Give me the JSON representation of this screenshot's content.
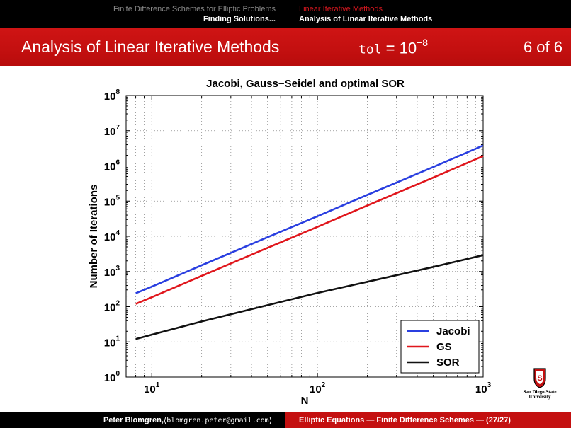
{
  "header": {
    "left_line1": "Finite Difference Schemes for Elliptic Problems",
    "left_line2": "Finding Solutions...",
    "right_line1": "Linear Iterative Methods",
    "right_line2": "Analysis of Linear Iterative Methods"
  },
  "slide": {
    "title": "Analysis of Linear Iterative Methods",
    "tol_label": "tol",
    "tol_eq": " = 10",
    "tol_exp": "−8",
    "page": "6 of 6"
  },
  "footer": {
    "author": "Peter Blomgren,",
    "email_open": " ⟨",
    "email": "blomgren.peter@gmail.com",
    "email_close": "⟩",
    "course": "Elliptic Equations — Finite Difference Schemes — (27/27)"
  },
  "logo": {
    "line1": "San Diego State",
    "line2": "University"
  },
  "colors": {
    "jacobi": "#2a3fe0",
    "gs": "#e0161c",
    "sor": "#111111",
    "bar_red": "#c41010"
  },
  "chart_data": {
    "type": "line",
    "title": "Jacobi, Gauss−Seidel and optimal SOR",
    "xlabel": "N",
    "ylabel": "Number of Iterations",
    "xscale": "log",
    "yscale": "log",
    "xlim": [
      7,
      1000
    ],
    "ylim": [
      1,
      100000000
    ],
    "grid": true,
    "legend_position": "bottom-right",
    "x_ticks": [
      {
        "value": 10,
        "base": "10",
        "exp": "1"
      },
      {
        "value": 100,
        "base": "10",
        "exp": "2"
      },
      {
        "value": 1000,
        "base": "10",
        "exp": "3"
      }
    ],
    "y_ticks": [
      {
        "value": 1,
        "base": "10",
        "exp": "0"
      },
      {
        "value": 10,
        "base": "10",
        "exp": "1"
      },
      {
        "value": 100,
        "base": "10",
        "exp": "2"
      },
      {
        "value": 1000,
        "base": "10",
        "exp": "3"
      },
      {
        "value": 10000,
        "base": "10",
        "exp": "4"
      },
      {
        "value": 100000,
        "base": "10",
        "exp": "5"
      },
      {
        "value": 1000000,
        "base": "10",
        "exp": "6"
      },
      {
        "value": 10000000,
        "base": "10",
        "exp": "7"
      },
      {
        "value": 100000000,
        "base": "10",
        "exp": "8"
      }
    ],
    "series": [
      {
        "name": "Jacobi",
        "x": [
          8,
          10,
          20,
          50,
          100,
          200,
          500,
          1000
        ],
        "values": [
          240,
          370,
          1500,
          9400,
          37000,
          150000,
          930000,
          3800000
        ]
      },
      {
        "name": "GS",
        "x": [
          8,
          10,
          20,
          50,
          100,
          200,
          500,
          1000
        ],
        "values": [
          120,
          185,
          750,
          4700,
          18500,
          75000,
          465000,
          1900000
        ]
      },
      {
        "name": "SOR",
        "x": [
          8,
          10,
          20,
          50,
          100,
          200,
          500,
          1000
        ],
        "values": [
          12,
          16,
          38,
          110,
          245,
          510,
          1350,
          2900
        ]
      }
    ]
  }
}
